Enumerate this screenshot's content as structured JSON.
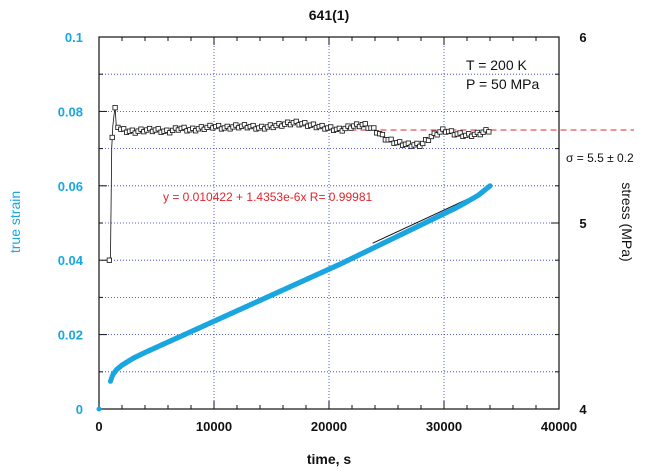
{
  "chart_data": {
    "type": "scatter",
    "title": "641(1)",
    "xlabel": "time, s",
    "ylabel_left": "true strain",
    "ylabel_right": "stress (MPa)",
    "xlim": [
      0,
      40000
    ],
    "ylim_left": [
      0,
      0.1
    ],
    "ylim_right": [
      4,
      6
    ],
    "x_ticks": [
      "0",
      "10000",
      "20000",
      "30000",
      "40000"
    ],
    "y_left_ticks": [
      "0",
      "0.02",
      "0.04",
      "0.06",
      "0.08",
      "0.1"
    ],
    "y_right_ticks": [
      "4",
      "5",
      "6"
    ],
    "grid": true,
    "annotations": {
      "temperature": "T = 200 K",
      "pressure": "P = 50 MPa",
      "fit": "y = 0.010422 + 1.4353e-6x   R= 0.99981",
      "sigma": "σ = 5.5 ± 0.2"
    },
    "colors": {
      "strain": "#1aa6e0",
      "stress": "#111111",
      "fit_text": "#e0262c",
      "reference_line": "#e0262c"
    },
    "series": [
      {
        "axis": "left",
        "x": [
          0,
          1000,
          1200,
          1500,
          2000,
          3000,
          4000,
          5000,
          6000,
          7000,
          8000,
          9000,
          10000,
          11000,
          12000,
          13000,
          14000,
          15000,
          16000,
          17000,
          18000,
          19000,
          20000,
          21000,
          22000,
          23000,
          24000,
          25000,
          26000,
          27000,
          28000,
          29000,
          30000,
          31000,
          32000,
          33000,
          34000
        ],
        "y": [
          0,
          0.0075,
          0.0092,
          0.0105,
          0.0118,
          0.0137,
          0.0152,
          0.0166,
          0.018,
          0.0194,
          0.0208,
          0.0222,
          0.0236,
          0.025,
          0.0264,
          0.0278,
          0.0292,
          0.0306,
          0.032,
          0.0334,
          0.0348,
          0.0362,
          0.0376,
          0.039,
          0.0405,
          0.042,
          0.0435,
          0.045,
          0.0465,
          0.048,
          0.0495,
          0.051,
          0.0525,
          0.054,
          0.0557,
          0.0575,
          0.06
        ]
      },
      {
        "axis": "right",
        "x": [
          900,
          1000,
          1100,
          1200,
          1300,
          1400,
          1500,
          2000,
          3000,
          4000,
          5000,
          6000,
          7000,
          8000,
          9000,
          10000,
          11000,
          12000,
          13000,
          14000,
          15000,
          16000,
          17000,
          18000,
          19000,
          20000,
          21000,
          22000,
          23000,
          24000,
          25000,
          26000,
          27000,
          28000,
          29000,
          30000,
          31000,
          32000,
          33000,
          34000
        ],
        "y": [
          4.8,
          4.82,
          5.4,
          5.52,
          5.58,
          5.62,
          5.52,
          5.5,
          5.49,
          5.5,
          5.5,
          5.49,
          5.51,
          5.5,
          5.51,
          5.52,
          5.51,
          5.52,
          5.52,
          5.51,
          5.52,
          5.53,
          5.54,
          5.53,
          5.52,
          5.51,
          5.5,
          5.52,
          5.53,
          5.5,
          5.45,
          5.43,
          5.42,
          5.42,
          5.47,
          5.5,
          5.48,
          5.47,
          5.48,
          5.5
        ]
      }
    ],
    "fit_line_x": [
      23800,
      34000
    ],
    "reference_stress": 5.5
  }
}
